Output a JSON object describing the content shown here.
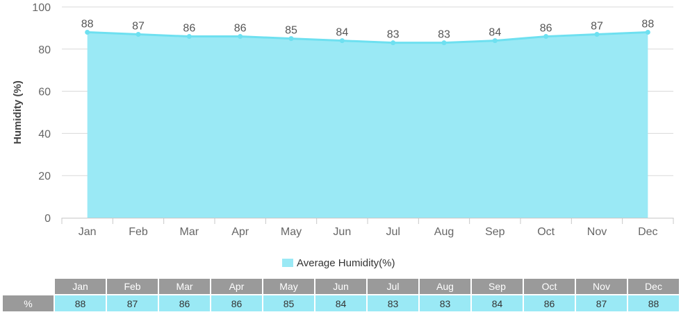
{
  "chart_data": {
    "type": "area",
    "categories": [
      "Jan",
      "Feb",
      "Mar",
      "Apr",
      "May",
      "Jun",
      "Jul",
      "Aug",
      "Sep",
      "Oct",
      "Nov",
      "Dec"
    ],
    "series": [
      {
        "name": "Average Humidity(%)",
        "values": [
          88,
          87,
          86,
          86,
          85,
          84,
          83,
          83,
          84,
          86,
          87,
          88
        ]
      }
    ],
    "ylabel": "Humidity (%)",
    "ylim": [
      0,
      100
    ],
    "yticks": [
      0,
      20,
      40,
      60,
      80,
      100
    ],
    "grid": true,
    "legend_position": "bottom",
    "data_labels": true
  },
  "colors": {
    "area_fill": "#9ae9f5",
    "line": "#6ee0f0",
    "grid": "#d8d8d8",
    "table_header": "#9a9a9a"
  },
  "legend": {
    "label": "Average Humidity(%)"
  },
  "table": {
    "row_label": "%",
    "headers": [
      "Jan",
      "Feb",
      "Mar",
      "Apr",
      "May",
      "Jun",
      "Jul",
      "Aug",
      "Sep",
      "Oct",
      "Nov",
      "Dec"
    ],
    "values": [
      "88",
      "87",
      "86",
      "86",
      "85",
      "84",
      "83",
      "83",
      "84",
      "86",
      "87",
      "88"
    ]
  }
}
